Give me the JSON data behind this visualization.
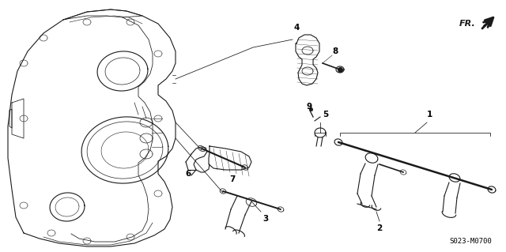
{
  "part_number": "S023-M0700",
  "fr_label": "FR.",
  "background_color": "#ffffff",
  "line_color": "#1a1a1a",
  "label_color": "#000000",
  "figsize": [
    6.4,
    3.19
  ],
  "dpi": 100,
  "annotation_fontsize": 7.5,
  "part_number_fontsize": 6.5,
  "fr_fontsize": 8
}
